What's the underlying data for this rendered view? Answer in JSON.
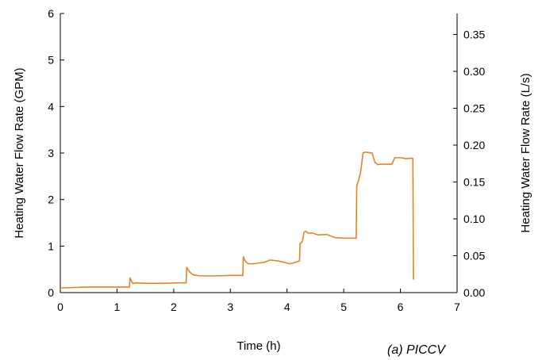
{
  "chart_data": {
    "type": "line",
    "xlabel": "Time (h)",
    "ylabel": "Heating Water Flow Rate (GPM)",
    "y2label": "Heating Water Flow Rate (L/s)",
    "caption": "(a) PICCV",
    "xlim": [
      0,
      7
    ],
    "ylim": [
      0,
      6
    ],
    "y2lim": [
      0,
      0.3785
    ],
    "x_ticks": [
      "0",
      "1",
      "2",
      "3",
      "4",
      "5",
      "6",
      "7"
    ],
    "y_ticks": [
      "0",
      "1",
      "2",
      "3",
      "4",
      "5",
      "6"
    ],
    "y2_ticks": [
      "0.00",
      "0.05",
      "0.10",
      "0.15",
      "0.20",
      "0.25",
      "0.30",
      "0.35"
    ],
    "grid": false,
    "colors": {
      "line": "#E8821E"
    },
    "series": [
      {
        "x": [
          0,
          0.5,
          1.22,
          1.23,
          1.25,
          1.28,
          1.3,
          1.35,
          1.5,
          1.8,
          2.1,
          2.22,
          2.23,
          2.25,
          2.28,
          2.32,
          2.36,
          2.45,
          2.6,
          2.8,
          3.0,
          3.22,
          3.23,
          3.25,
          3.28,
          3.32,
          3.4,
          3.6,
          3.7,
          3.85,
          3.95,
          4.05,
          4.15,
          4.22,
          4.23,
          4.27,
          4.3,
          4.33,
          4.37,
          4.45,
          4.55,
          4.7,
          4.85,
          5.0,
          5.22,
          5.23,
          5.26,
          5.3,
          5.34,
          5.38,
          5.5,
          5.55,
          5.6,
          5.65,
          5.85,
          5.9,
          6.0,
          6.1,
          6.2,
          6.22,
          6.23
        ],
        "y": [
          0.1,
          0.12,
          0.12,
          0.32,
          0.26,
          0.2,
          0.2,
          0.21,
          0.2,
          0.2,
          0.21,
          0.21,
          0.55,
          0.5,
          0.45,
          0.4,
          0.38,
          0.36,
          0.36,
          0.36,
          0.37,
          0.37,
          0.78,
          0.7,
          0.65,
          0.62,
          0.62,
          0.65,
          0.7,
          0.68,
          0.65,
          0.62,
          0.65,
          0.68,
          1.05,
          1.1,
          1.3,
          1.32,
          1.28,
          1.28,
          1.24,
          1.25,
          1.18,
          1.17,
          1.17,
          2.3,
          2.4,
          2.6,
          3.0,
          3.02,
          3.0,
          2.8,
          2.75,
          2.76,
          2.76,
          2.9,
          2.9,
          2.88,
          2.89,
          2.88,
          0.28
        ]
      }
    ]
  }
}
